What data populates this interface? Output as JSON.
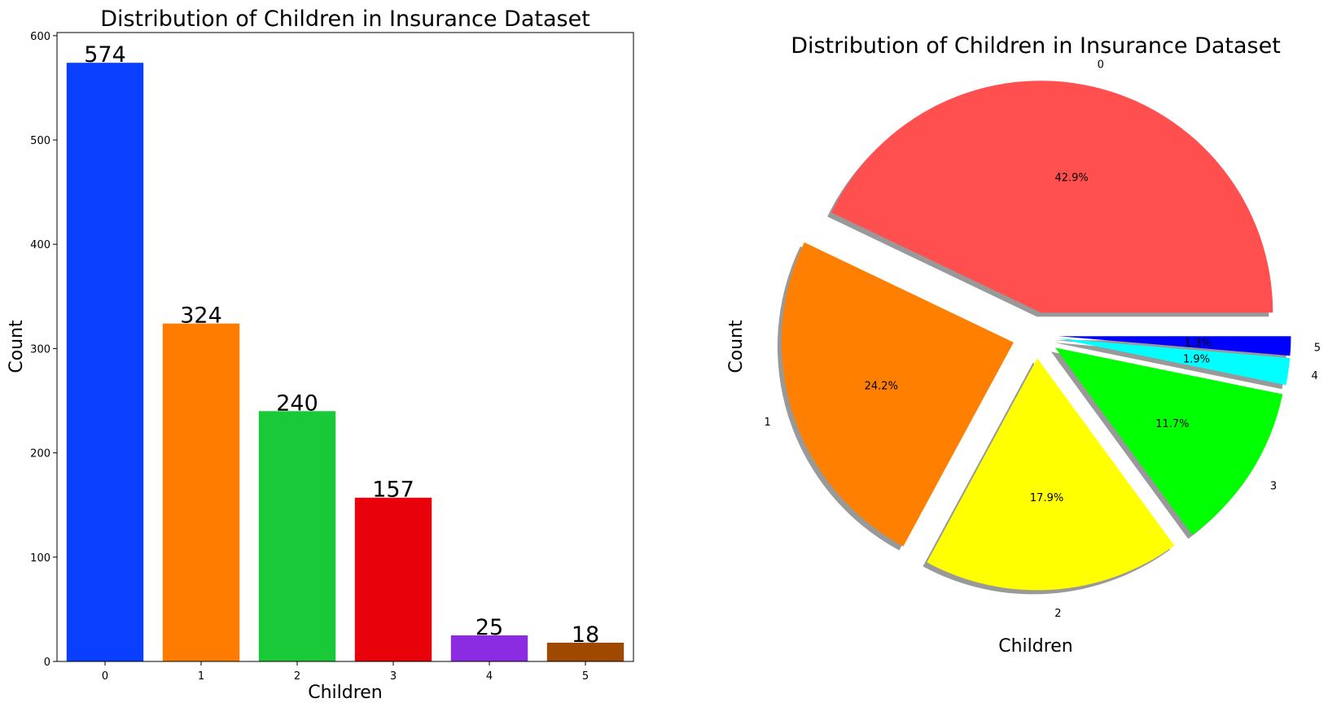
{
  "chart_data": [
    {
      "type": "bar",
      "title": "Distribution of Children in Insurance Dataset",
      "xlabel": "Children",
      "ylabel": "Count",
      "categories": [
        "0",
        "1",
        "2",
        "3",
        "4",
        "5"
      ],
      "values": [
        574,
        324,
        240,
        157,
        25,
        18
      ],
      "data_labels": [
        "574",
        "324",
        "240",
        "157",
        "25",
        "18"
      ],
      "colors": [
        "#0a3fff",
        "#ff7c00",
        "#1ac938",
        "#e8000b",
        "#8b2be2",
        "#9f4800"
      ],
      "ylim": [
        0,
        603
      ],
      "yticks": [
        0,
        100,
        200,
        300,
        400,
        500,
        600
      ],
      "grid": false,
      "legend": "none"
    },
    {
      "type": "pie",
      "title": "Distribution of Children in Insurance Dataset",
      "xlabel": "Children",
      "ylabel": "Count",
      "labels": [
        "0",
        "1",
        "2",
        "3",
        "4",
        "5"
      ],
      "values": [
        574,
        324,
        240,
        157,
        25,
        18
      ],
      "pct_labels": [
        "42.9%",
        "24.2%",
        "17.9%",
        "11.7%",
        "1.9%",
        "1.3%"
      ],
      "colors": [
        "#ff4f4f",
        "#ff7f00",
        "#ffff00",
        "#00ff00",
        "#00ffff",
        "#0000ff"
      ],
      "explode": [
        0.1,
        0.1,
        0.1,
        0.1,
        0.1,
        0.1
      ],
      "shadow": true,
      "startangle": 0,
      "legend": "none"
    }
  ]
}
